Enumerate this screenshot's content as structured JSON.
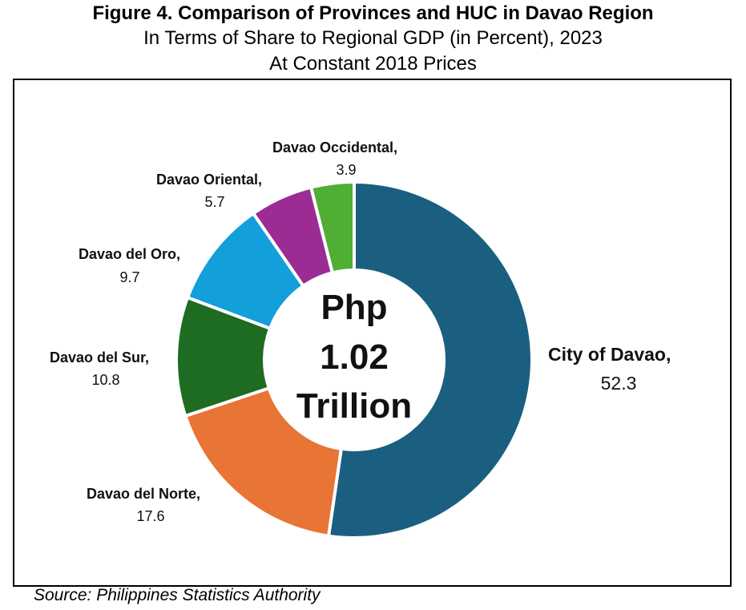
{
  "figure": {
    "title": "Figure 4. Comparison of Provinces and HUC in Davao Region",
    "subtitle_line1": "In Terms of Share to Regional GDP (in Percent), 2023",
    "subtitle_line2": "At Constant 2018 Prices",
    "source": "Source: Philippines Statistics Authority"
  },
  "chart_data": {
    "type": "pie",
    "variant": "donut",
    "center_label": [
      "Php",
      "1.02",
      "Trillion"
    ],
    "slices": [
      {
        "name": "City of Davao",
        "value": 52.3,
        "value_label": "52.3",
        "color": "#1a5f80"
      },
      {
        "name": "Davao del Norte",
        "value": 17.6,
        "value_label": "17.6",
        "color": "#e87435"
      },
      {
        "name": "Davao del Sur",
        "value": 10.8,
        "value_label": "10.8",
        "color": "#1e6b22"
      },
      {
        "name": "Davao del Oro",
        "value": 9.7,
        "value_label": "9.7",
        "color": "#139fda"
      },
      {
        "name": "Davao Oriental",
        "value": 5.7,
        "value_label": "5.7",
        "color": "#9b2c94"
      },
      {
        "name": "Davao Occidental",
        "value": 3.9,
        "value_label": "3.9",
        "color": "#4fae34"
      }
    ]
  }
}
